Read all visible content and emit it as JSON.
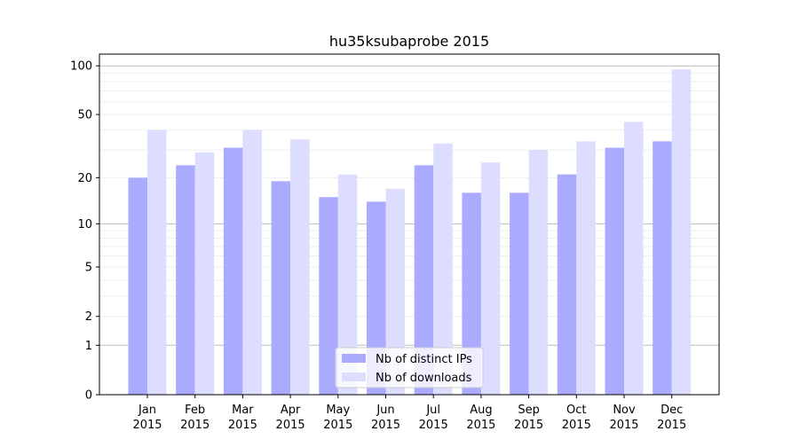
{
  "chart_data": {
    "type": "bar",
    "title": "hu35ksubaprobe 2015",
    "xlabel": "",
    "ylabel": "",
    "yscale": "log(1+x)",
    "ylim": [
      0,
      110
    ],
    "yticks": [
      0,
      1,
      2,
      5,
      10,
      20,
      50,
      100
    ],
    "grid": true,
    "legend_position": "lower center",
    "categories": [
      "Jan\n2015",
      "Feb\n2015",
      "Mar\n2015",
      "Apr\n2015",
      "May\n2015",
      "Jun\n2015",
      "Jul\n2015",
      "Aug\n2015",
      "Sep\n2015",
      "Oct\n2015",
      "Nov\n2015",
      "Dec\n2015"
    ],
    "series": [
      {
        "name": "Nb of distinct IPs",
        "color": "#aaaaff",
        "values": [
          20,
          24,
          31,
          19,
          15,
          14,
          24,
          16,
          16,
          21,
          31,
          34
        ]
      },
      {
        "name": "Nb of downloads",
        "color": "#ddddff",
        "values": [
          40,
          29,
          40,
          35,
          21,
          17,
          33,
          25,
          30,
          34,
          45,
          95
        ]
      }
    ]
  }
}
